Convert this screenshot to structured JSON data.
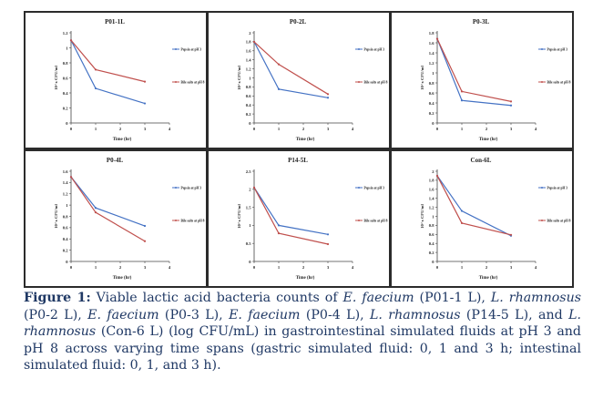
{
  "chart_data": [
    {
      "type": "line",
      "title": "P01-1L",
      "xlabel": "Time (hr)",
      "ylabel": "10^x CFU/ml",
      "x": [
        0,
        1,
        3
      ],
      "xticks": [
        "0",
        "1",
        "2",
        "3",
        "4"
      ],
      "xlim": [
        0,
        4
      ],
      "ylim": [
        0,
        1.2
      ],
      "yticks": [
        "0",
        "0.2",
        "0.4",
        "0.6",
        "0.8",
        "1",
        "1.2"
      ],
      "legend": "right",
      "series": [
        {
          "name": "Pepsin at pH 3",
          "color": "#4472c4",
          "values": [
            1.1,
            0.46,
            0.26
          ]
        },
        {
          "name": "Bile salts at pH 8",
          "color": "#c0504d",
          "values": [
            1.1,
            0.71,
            0.55
          ]
        }
      ]
    },
    {
      "type": "line",
      "title": "P0-2L",
      "xlabel": "Time (hr)",
      "ylabel": "10^x CFU/ml",
      "x": [
        0,
        1,
        3
      ],
      "xticks": [
        "0",
        "1",
        "2",
        "3",
        "4"
      ],
      "xlim": [
        0,
        4
      ],
      "ylim": [
        0,
        2
      ],
      "yticks": [
        "0",
        "0.2",
        "0.4",
        "0.6",
        "0.8",
        "1",
        "1.2",
        "1.4",
        "1.6",
        "1.8",
        "2"
      ],
      "legend": "right",
      "series": [
        {
          "name": "Pepsin at pH 3",
          "color": "#4472c4",
          "values": [
            1.8,
            0.75,
            0.56
          ]
        },
        {
          "name": "Bile salts at pH 8",
          "color": "#c0504d",
          "values": [
            1.8,
            1.3,
            0.64
          ]
        }
      ]
    },
    {
      "type": "line",
      "title": "P0-3L",
      "xlabel": "Time (hr)",
      "ylabel": "10^x CFU/ml",
      "x": [
        0,
        1,
        3
      ],
      "xticks": [
        "0",
        "1",
        "2",
        "3",
        "4"
      ],
      "xlim": [
        0,
        4
      ],
      "ylim": [
        0,
        1.8
      ],
      "yticks": [
        "0",
        "0.2",
        "0.4",
        "0.6",
        "0.8",
        "1",
        "1.2",
        "1.4",
        "1.6",
        "1.8"
      ],
      "legend": "right",
      "series": [
        {
          "name": "Pepsin at pH 3",
          "color": "#4472c4",
          "values": [
            1.68,
            0.45,
            0.35
          ]
        },
        {
          "name": "Bile salts at pH 8",
          "color": "#c0504d",
          "values": [
            1.68,
            0.63,
            0.43
          ]
        }
      ]
    },
    {
      "type": "line",
      "title": "P0-4L",
      "xlabel": "Time (hr)",
      "ylabel": "10^x CFU/ml",
      "x": [
        0,
        1,
        3
      ],
      "xticks": [
        "0",
        "1",
        "2",
        "3",
        "4"
      ],
      "xlim": [
        0,
        4
      ],
      "ylim": [
        0,
        1.6
      ],
      "yticks": [
        "0",
        "0.2",
        "0.4",
        "0.6",
        "0.8",
        "1",
        "1.2",
        "1.4",
        "1.6"
      ],
      "legend": "right",
      "series": [
        {
          "name": "Pepsin at pH 3",
          "color": "#4472c4",
          "values": [
            1.5,
            0.95,
            0.63
          ]
        },
        {
          "name": "Bile salts at pH 8",
          "color": "#c0504d",
          "values": [
            1.5,
            0.87,
            0.36
          ]
        }
      ]
    },
    {
      "type": "line",
      "title": "P14-5L",
      "xlabel": "Time (hr)",
      "ylabel": "10^x CFU/ml",
      "x": [
        0,
        1,
        3
      ],
      "xticks": [
        "0",
        "1",
        "2",
        "3",
        "4"
      ],
      "xlim": [
        0,
        4
      ],
      "ylim": [
        0,
        2.5
      ],
      "yticks": [
        "0",
        "0.5",
        "1",
        "1.5",
        "2",
        "2.5"
      ],
      "legend": "right",
      "series": [
        {
          "name": "Pepsin at pH 3",
          "color": "#4472c4",
          "values": [
            2.05,
            1.0,
            0.75
          ]
        },
        {
          "name": "Bile salts at pH 8",
          "color": "#c0504d",
          "values": [
            2.05,
            0.78,
            0.48
          ]
        }
      ]
    },
    {
      "type": "line",
      "title": "Con-6L",
      "xlabel": "Time (hr)",
      "ylabel": "10^x CFU/ml",
      "x": [
        0,
        1,
        3
      ],
      "xticks": [
        "0",
        "1",
        "2",
        "3",
        "4"
      ],
      "xlim": [
        0,
        4
      ],
      "ylim": [
        0,
        2
      ],
      "yticks": [
        "0",
        "0.2",
        "0.4",
        "0.6",
        "0.8",
        "1",
        "1.2",
        "1.4",
        "1.6",
        "1.8",
        "2"
      ],
      "legend": "right",
      "series": [
        {
          "name": "Pepsin at pH 3",
          "color": "#4472c4",
          "values": [
            1.9,
            1.12,
            0.57
          ]
        },
        {
          "name": "Bile salts at pH 8",
          "color": "#c0504d",
          "values": [
            1.9,
            0.85,
            0.59
          ]
        }
      ]
    }
  ],
  "caption": {
    "label": "Figure 1:",
    "parts": [
      {
        "t": " Viable lactic acid bacteria counts of ",
        "i": false
      },
      {
        "t": "E. faecium",
        "i": true
      },
      {
        "t": " (P01-1 L), ",
        "i": false
      },
      {
        "t": "L. rhamnosus",
        "i": true
      },
      {
        "t": " (P0-2 L), ",
        "i": false
      },
      {
        "t": "E. faecium",
        "i": true
      },
      {
        "t": " (P0-3 L), ",
        "i": false
      },
      {
        "t": "E. faecium",
        "i": true
      },
      {
        "t": " (P0-4 L), ",
        "i": false
      },
      {
        "t": "L. rhamnosus",
        "i": true
      },
      {
        "t": " (P14-5 L), and ",
        "i": false
      },
      {
        "t": "L. rhamnosus",
        "i": true
      },
      {
        "t": " (Con-6 L) (log CFU/mL) in gastrointestinal simulated fluids at pH 3 and pH 8 across varying time spans (gastric simulated fluid: 0, 1 and 3 h; intestinal simulated fluid: 0, 1, and 3 h).",
        "i": false
      }
    ]
  }
}
